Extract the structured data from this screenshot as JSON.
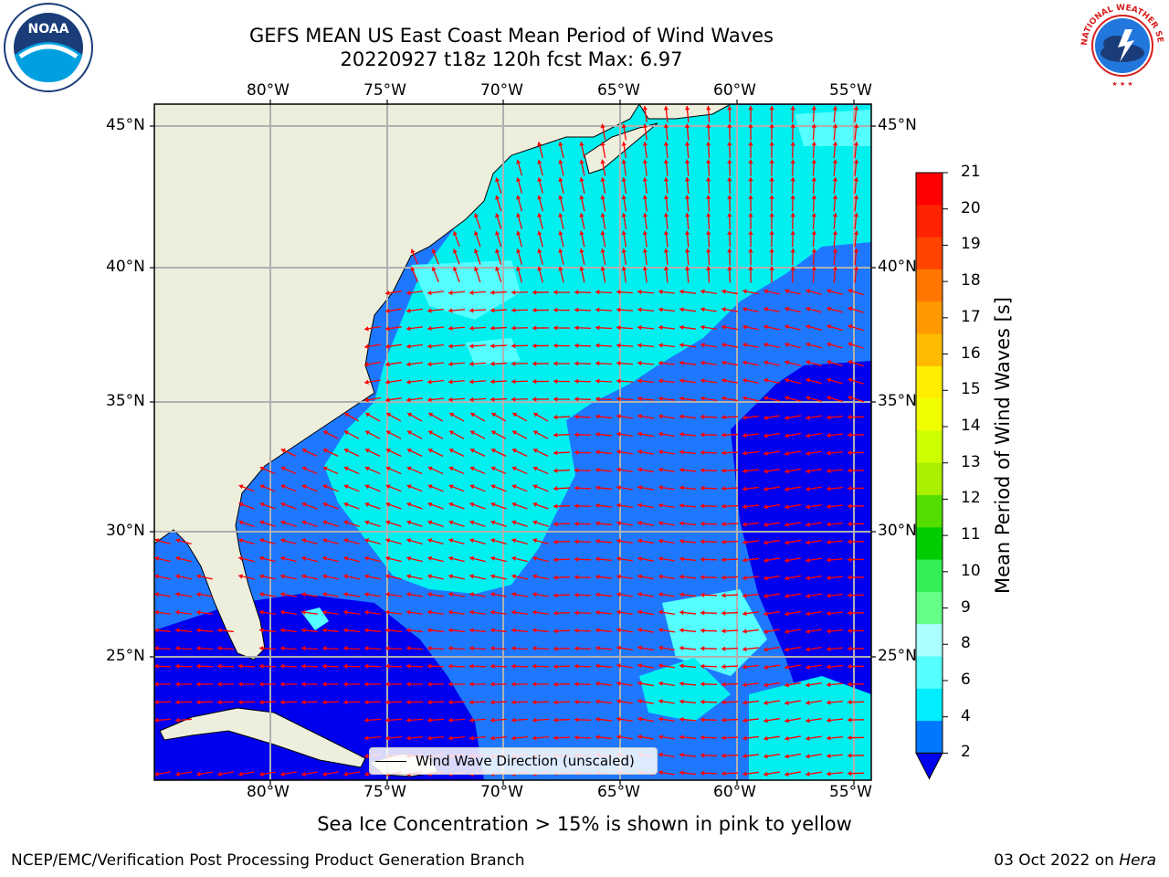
{
  "title": {
    "line1": "GEFS MEAN US East Coast Mean Period of Wind Waves",
    "line2": "20220927 t18z 120h fcst   Max: 6.97"
  },
  "logos": {
    "noaa_text": "NOAA",
    "nws_text": "NATIONAL WEATHER SERVICE"
  },
  "axes": {
    "lon_labels": [
      "80°W",
      "75°W",
      "70°W",
      "65°W",
      "60°W",
      "55°W"
    ],
    "lat_labels": [
      "45°N",
      "40°N",
      "35°N",
      "30°N",
      "25°N"
    ]
  },
  "legend": {
    "label": "Wind Wave Direction (unscaled)"
  },
  "colorbar": {
    "title": "Mean Period of Wind Waves [s]",
    "ticks": [
      "21",
      "20",
      "19",
      "18",
      "17",
      "16",
      "15",
      "14",
      "13",
      "12",
      "11",
      "10",
      "9",
      "8",
      "6",
      "4",
      "2"
    ],
    "colors": [
      "#ff0000",
      "#ff2200",
      "#ff4400",
      "#ff7700",
      "#ff9900",
      "#ffbb00",
      "#ffee00",
      "#f0ff00",
      "#ccff00",
      "#aaee00",
      "#55dd00",
      "#00cc00",
      "#33ee55",
      "#66ff88",
      "#aaffff",
      "#55ffff",
      "#00eeff",
      "#0077ff"
    ]
  },
  "colors": {
    "land": "#eeeedd",
    "ocean_light": "#00f0f0",
    "ocean_pale": "#55ffff",
    "ocean_mid": "#1e78ff",
    "ocean_deep": "#0000ee",
    "arrow": "#ff0000"
  },
  "ice_note": "Sea Ice Concentration > 15% is shown in pink to yellow",
  "footer": {
    "left": "NCEP/EMC/Verification Post Processing Product Generation Branch",
    "right_date": "03 Oct 2022 on ",
    "right_host": "Hera"
  }
}
